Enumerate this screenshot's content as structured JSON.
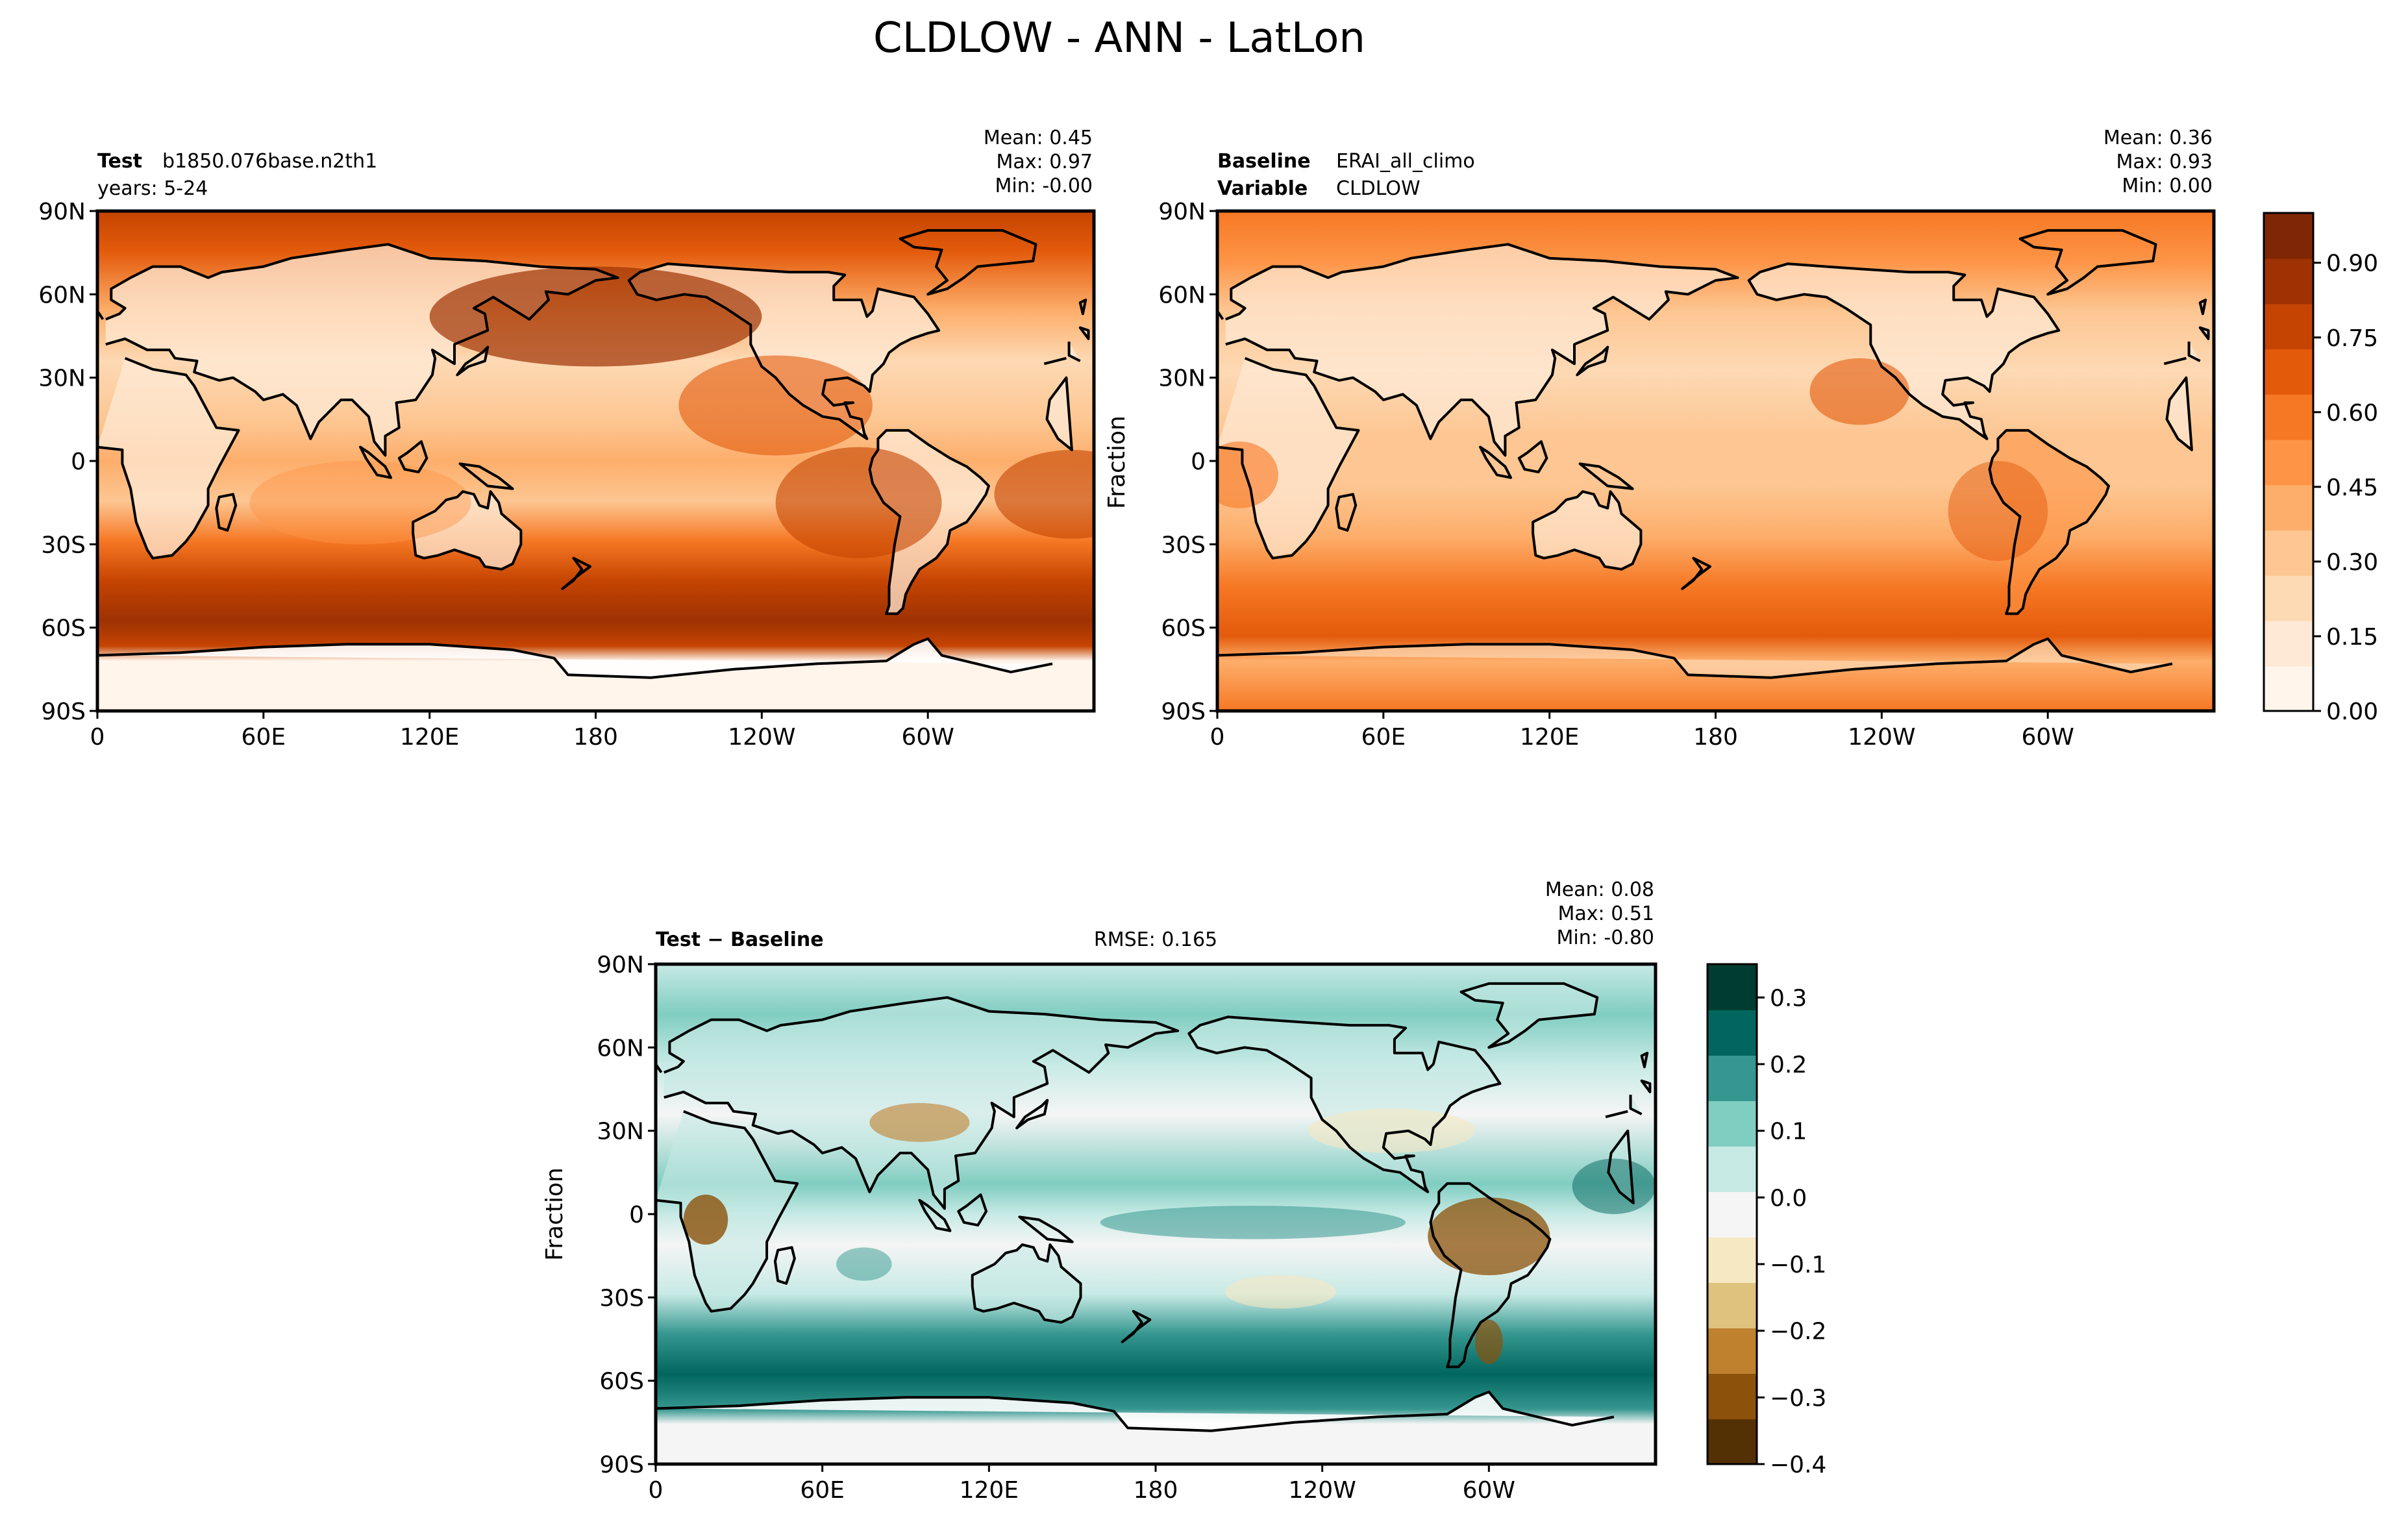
{
  "figure": {
    "title": "CLDLOW - ANN - LatLon"
  },
  "colors": {
    "oranges": [
      "#fff5eb",
      "#fee9d6",
      "#fdd9b4",
      "#fdc692",
      "#fdae6b",
      "#fd9446",
      "#f67824",
      "#e35a0b",
      "#c54402",
      "#9e3203",
      "#7f2704"
    ],
    "diverging": [
      "#543005",
      "#8c510a",
      "#bf812d",
      "#dfc27d",
      "#f6e8c3",
      "#f5f5f5",
      "#c7eae5",
      "#80cdc1",
      "#35978f",
      "#01665e",
      "#003c30"
    ],
    "frame": "#000000",
    "coast": "#000000"
  },
  "chart_data": [
    {
      "type": "heatmap",
      "panel": "test",
      "header": {
        "left_bold": "Test",
        "left_text": "b1850.076base.n2th1",
        "left_line2": "years: 5-24",
        "stats": {
          "mean": "Mean:  0.45",
          "max": "Max:  0.97",
          "min": "Min: -0.00"
        }
      },
      "ylabel": "",
      "xticks": [
        "0",
        "60E",
        "120E",
        "180",
        "120W",
        "60W"
      ],
      "yticks": [
        "90N",
        "60N",
        "30N",
        "0",
        "30S",
        "60S",
        "90S"
      ],
      "xlim": [
        0,
        360
      ],
      "ylim": [
        -90,
        90
      ],
      "colormap": "Oranges",
      "color_range": [
        0,
        1
      ]
    },
    {
      "type": "heatmap",
      "panel": "baseline",
      "header": {
        "left_bold": "Baseline",
        "left_text": "ERAI_all_climo",
        "left_bold2": "Variable",
        "left_text2": "CLDLOW",
        "stats": {
          "mean": "Mean:  0.36",
          "max": "Max:  0.93",
          "min": "Min:  0.00"
        }
      },
      "ylabel": "Fraction",
      "xticks": [
        "0",
        "60E",
        "120E",
        "180",
        "120W",
        "60W"
      ],
      "yticks": [
        "90N",
        "60N",
        "30N",
        "0",
        "30S",
        "60S",
        "90S"
      ],
      "xlim": [
        0,
        360
      ],
      "ylim": [
        -90,
        90
      ],
      "colormap": "Oranges",
      "color_range": [
        0,
        1
      ],
      "colorbar": {
        "ticks": [
          "0.00",
          "0.15",
          "0.30",
          "0.45",
          "0.60",
          "0.75",
          "0.90"
        ],
        "range": [
          0,
          1
        ]
      }
    },
    {
      "type": "heatmap",
      "panel": "difference",
      "header": {
        "left_bold": "Test − Baseline",
        "center_text": "RMSE: 0.165",
        "stats": {
          "mean": "Mean:  0.08",
          "max": "Max:  0.51",
          "min": "Min: -0.80"
        }
      },
      "ylabel": "Fraction",
      "xticks": [
        "0",
        "60E",
        "120E",
        "180",
        "120W",
        "60W"
      ],
      "yticks": [
        "90N",
        "60N",
        "30N",
        "0",
        "30S",
        "60S",
        "90S"
      ],
      "xlim": [
        0,
        360
      ],
      "ylim": [
        -90,
        90
      ],
      "colormap": "BrBG",
      "color_range": [
        -0.4,
        0.35
      ],
      "colorbar": {
        "ticks": [
          "0.3",
          "0.2",
          "0.1",
          "0.0",
          "−0.1",
          "−0.2",
          "−0.3",
          "−0.4"
        ],
        "range": [
          -0.4,
          0.35
        ]
      }
    }
  ]
}
